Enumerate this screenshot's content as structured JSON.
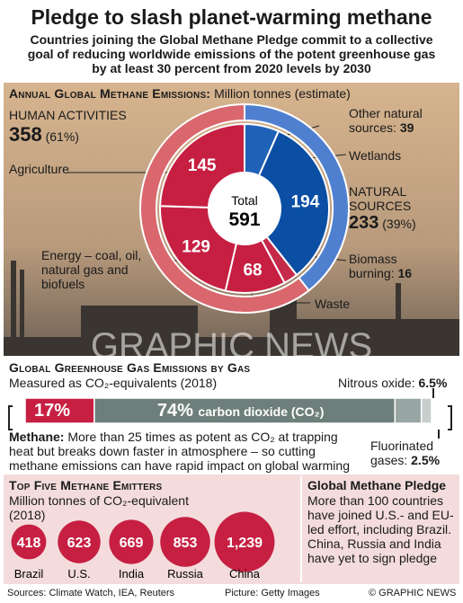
{
  "header": {
    "title": "Pledge to slash planet-warming methane",
    "subtitle": "Countries joining the Global Methane Pledge commit to a collective goal of reducing worldwide emissions of the potent greenhouse gas by at least 30 percent from 2020 levels by 2030"
  },
  "watermark": "GRAPHIC NEWS",
  "chart_data": [
    {
      "type": "donut",
      "title": "Annual Global Methane Emissions:",
      "subtitle": "Million tonnes (estimate)",
      "total_label": "Total",
      "total": 591,
      "groups": {
        "names": [
          "NATURAL SOURCES",
          "HUMAN ACTIVITIES"
        ],
        "values": [
          233,
          358
        ],
        "shares": [
          39,
          61
        ],
        "share_labels": [
          "(39%)",
          "(61%)"
        ],
        "colors": [
          "#4f80d0",
          "#d9676d"
        ]
      },
      "categories": [
        "Other natural sources:",
        "Wetlands",
        "Biomass burning:",
        "Waste",
        "Energy – coal, oil, natural gas and biofuels",
        "Agriculture"
      ],
      "values": [
        39,
        194,
        16,
        68,
        129,
        145
      ],
      "colors": [
        "#1f62b8",
        "#0b4fa5",
        "#c52a4a",
        "#c61f42",
        "#c61f42",
        "#c61f42"
      ]
    },
    {
      "type": "stacked-bar",
      "title": "Global Greenhouse Gas Emissions by Gas",
      "subtitle": "Measured as CO₂-equivalents (2018)",
      "categories": [
        null,
        "carbon dioxide (CO₂)",
        "Nitrous oxide:",
        "Fluorinated gases:"
      ],
      "values": [
        17,
        74,
        6.5,
        2.5
      ],
      "value_labels": [
        "17%",
        "74%",
        "6.5%",
        "2.5%"
      ],
      "colors": [
        "#c61f42",
        "#6e7f7b",
        "#98a6a3",
        "#c6cfcd"
      ],
      "xlim": [
        0,
        100
      ],
      "note_label": "Methane:",
      "note": "More than 25 times as potent as CO₂ at trapping heat but breaks down faster in atmosphere – so cutting methane emissions can have rapid impact on global warming"
    },
    {
      "type": "bubble",
      "title": "Top Five Methane Emitters",
      "subtitle": "Million tonnes of CO₂-equivalent (2018)",
      "categories": [
        "Brazil",
        "U.S.",
        "India",
        "Russia",
        "China"
      ],
      "values": [
        418,
        623,
        669,
        853,
        1239
      ],
      "value_labels": [
        "418",
        "623",
        "669",
        "853",
        "1,239"
      ],
      "color": "#c61f42"
    }
  ],
  "pledge": {
    "title": "Global Methane Pledge",
    "text": "More than 100 countries have joined U.S.- and EU-led effort, including Brazil. China, Russia and India have yet to sign pledge"
  },
  "footer": {
    "sources": "Sources: Climate Watch, IEA, Reuters",
    "picture": "Picture: Getty Images",
    "copyright": "© GRAPHIC NEWS"
  }
}
